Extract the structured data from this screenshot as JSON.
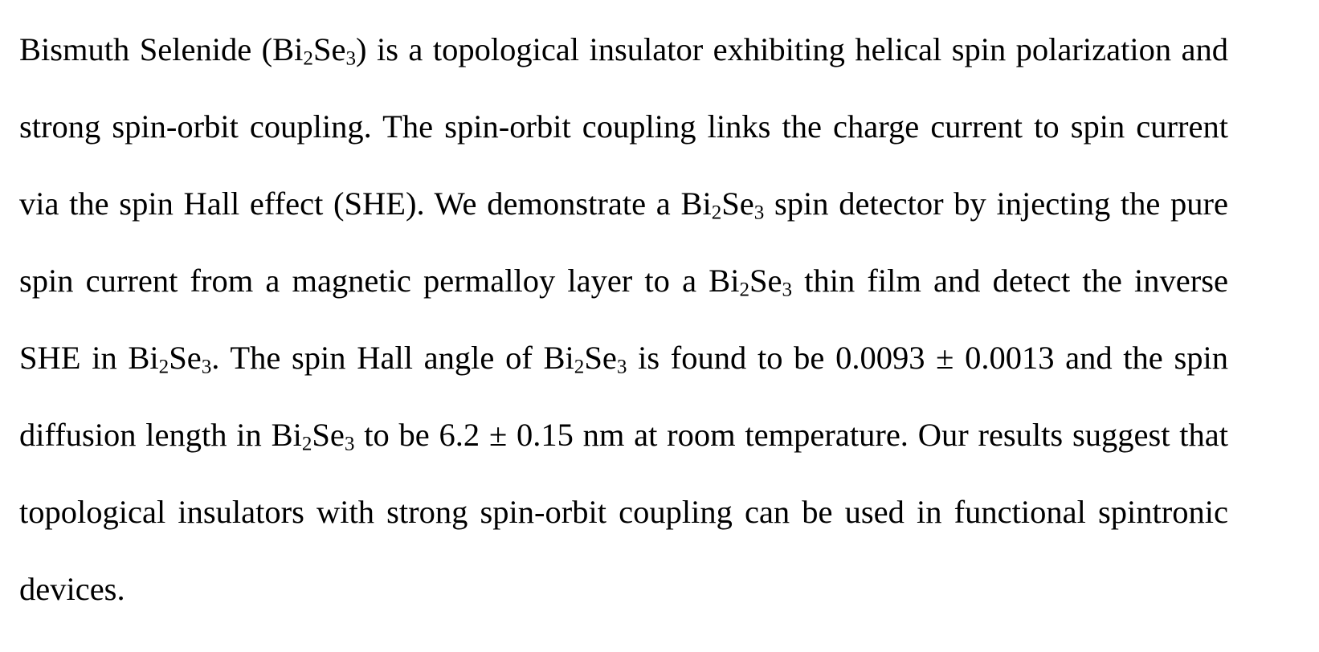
{
  "abstract": {
    "s01": "Bismuth Selenide (Bi",
    "s02": "2",
    "s03": "Se",
    "s04": "3",
    "s05": ") is a topological insulator exhibiting helical spin polarization and strong spin-orbit coupling. The spin-orbit coupling links the charge current to spin current via the spin Hall effect (SHE). We demonstrate a Bi",
    "s06": "2",
    "s07": "Se",
    "s08": "3",
    "s09": " spin detector by injecting the pure spin current from a magnetic permalloy layer to a Bi",
    "s10": "2",
    "s11": "Se",
    "s12": "3",
    "s13": " thin film and detect the inverse SHE in Bi",
    "s14": "2",
    "s15": "Se",
    "s16": "3",
    "s17": ". The spin Hall angle of Bi",
    "s18": "2",
    "s19": "Se",
    "s20": "3",
    "s21": " is found to be 0.0093 ± 0.0013 and the spin diffusion length in Bi",
    "s22": "2",
    "s23": "Se",
    "s24": "3",
    "s25": " to be 6.2 ± 0.15 nm at room temperature. Our results suggest that topological insulators with strong spin-orbit coupling can be used in functional spintronic devices."
  }
}
